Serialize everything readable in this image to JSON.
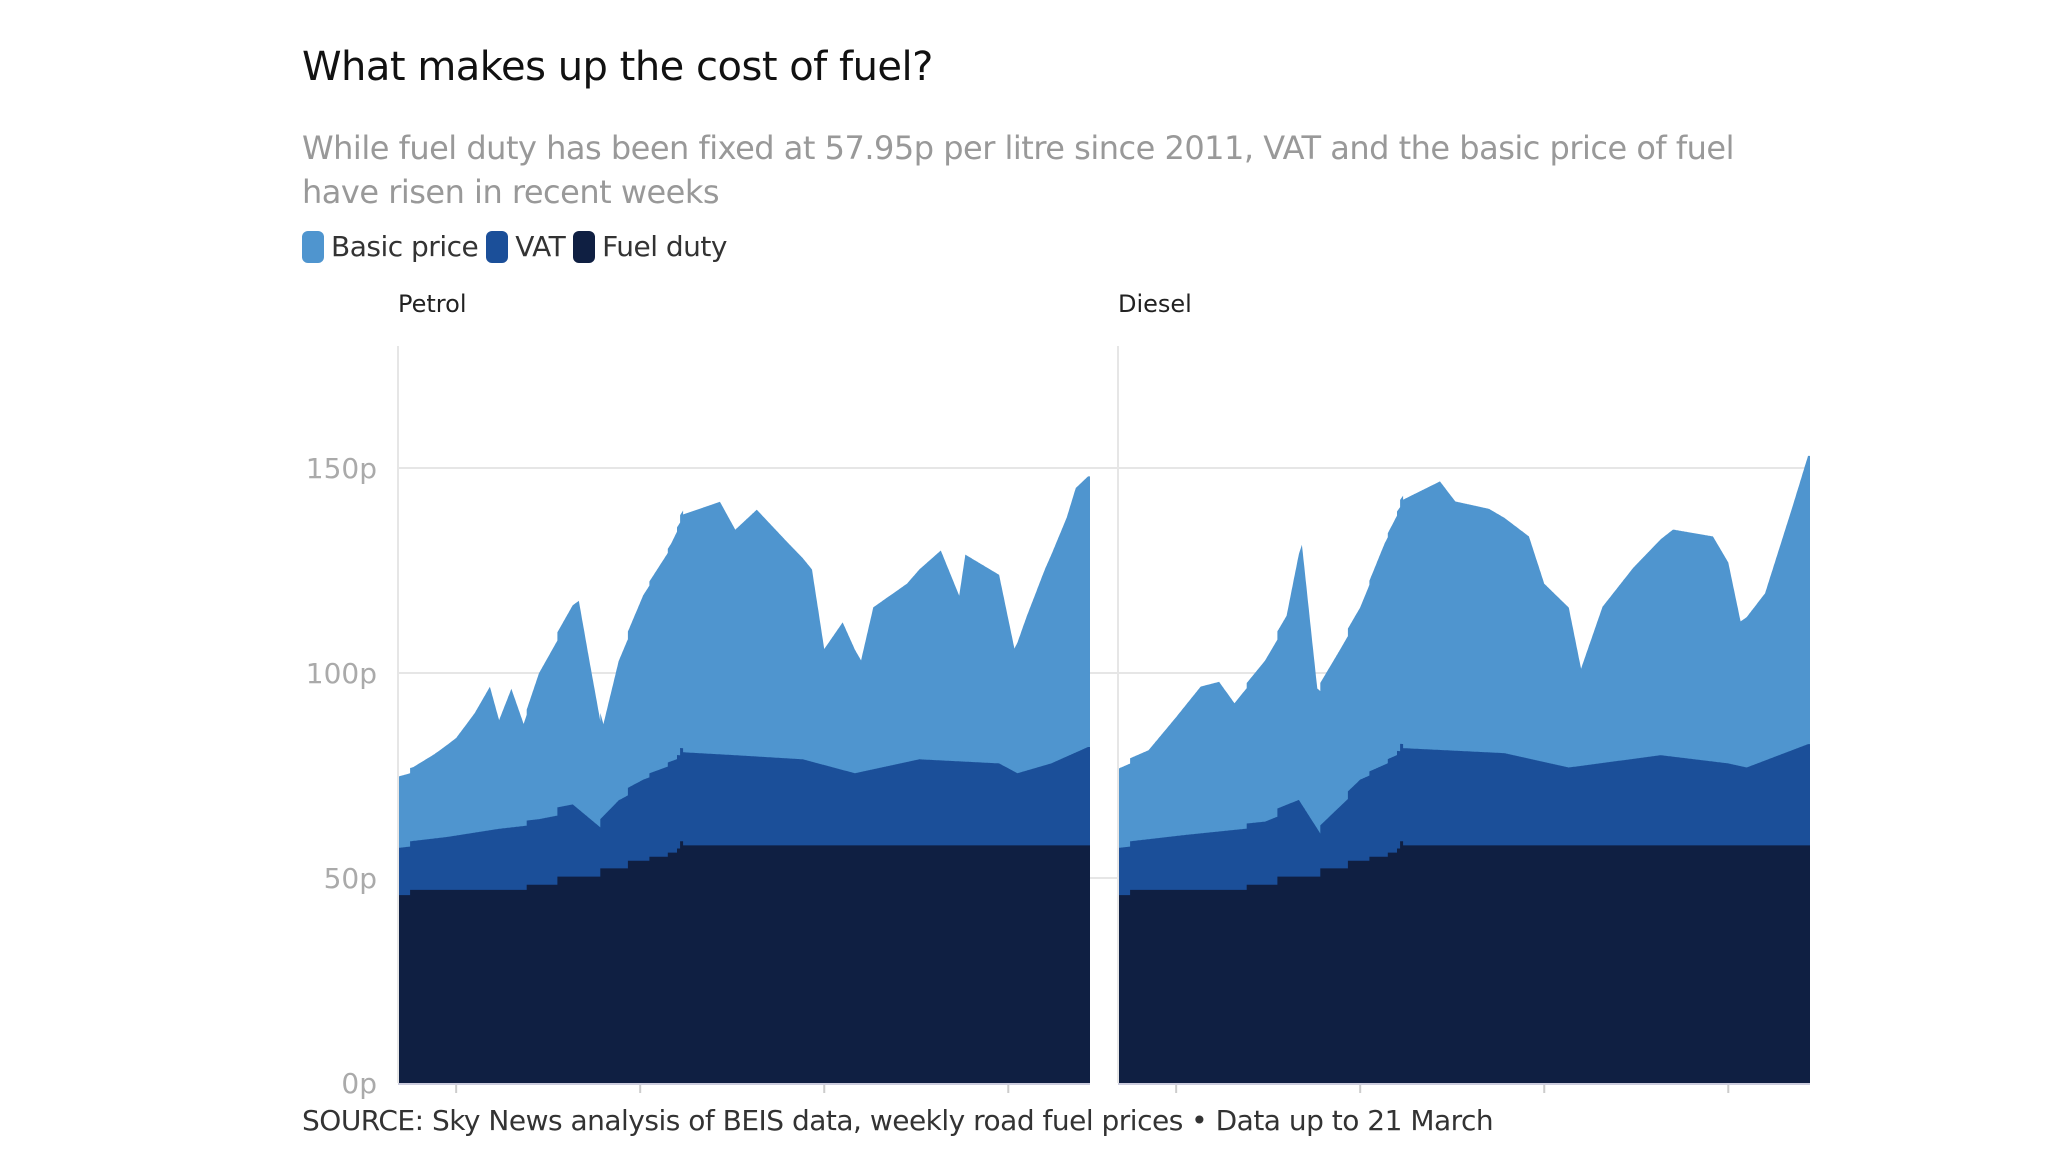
{
  "title": "What makes up the cost of fuel?",
  "subtitle": "While fuel duty has been fixed at 57.95p per litre since 2011, VAT and the basic price of fuel have risen in recent weeks",
  "source": "SOURCE: Sky News analysis of BEIS data, weekly road fuel prices • Data up to 21 March",
  "legend": [
    {
      "label": "Basic price",
      "color": "#4f95cf"
    },
    {
      "label": "VAT",
      "color": "#1b4f99"
    },
    {
      "label": "Fuel duty",
      "color": "#0f1f42"
    }
  ],
  "chart_data": [
    {
      "type": "area",
      "stacked": true,
      "title": "Petrol",
      "x_range": [
        "2003-06",
        "2022-03"
      ],
      "ylim": [
        0,
        165
      ],
      "y_ticks": [
        0,
        50,
        100,
        150
      ],
      "y_tick_labels": [
        "0p",
        "50p",
        "100p",
        "150p"
      ],
      "x_ticks": [
        "2005",
        "2010",
        "2015",
        "2020"
      ],
      "grid": true,
      "series": [
        {
          "name": "Fuel duty",
          "color": "#0f1f42",
          "step": true,
          "points": [
            [
              "2003-06",
              45.82
            ],
            [
              "2003-10",
              47.1
            ],
            [
              "2006-12",
              48.35
            ],
            [
              "2007-10",
              50.35
            ],
            [
              "2008-12",
              52.35
            ],
            [
              "2009-09",
              54.19
            ],
            [
              "2010-04",
              55.19
            ],
            [
              "2010-10",
              56.19
            ],
            [
              "2011-01",
              57.19
            ],
            [
              "2011-02",
              58.95
            ],
            [
              "2011-03",
              57.95
            ],
            [
              "2022-03",
              57.95
            ]
          ]
        },
        {
          "name": "VAT",
          "color": "#1b4f99",
          "points": [
            [
              "2003-06",
              11.5
            ],
            [
              "2004-10",
              12.9
            ],
            [
              "2006-03",
              14.9
            ],
            [
              "2007-04",
              16.0
            ],
            [
              "2008-03",
              17.6
            ],
            [
              "2008-12",
              12.0
            ],
            [
              "2009-06",
              16.6
            ],
            [
              "2010-02",
              19.8
            ],
            [
              "2011-01",
              22.8
            ],
            [
              "2012-08",
              22.0
            ],
            [
              "2014-06",
              21.0
            ],
            [
              "2015-11",
              17.6
            ],
            [
              "2017-08",
              21.0
            ],
            [
              "2019-10",
              20.0
            ],
            [
              "2020-04",
              17.6
            ],
            [
              "2021-03",
              20.0
            ],
            [
              "2022-03",
              24.0
            ]
          ]
        },
        {
          "name": "Basic price",
          "color": "#4f95cf",
          "points": [
            [
              "2003-06",
              17.4
            ],
            [
              "2003-11",
              18.0
            ],
            [
              "2004-06",
              20.6
            ],
            [
              "2005-01",
              23.8
            ],
            [
              "2005-07",
              29.1
            ],
            [
              "2005-12",
              35.0
            ],
            [
              "2006-03",
              26.5
            ],
            [
              "2006-07",
              33.8
            ],
            [
              "2006-11",
              24.9
            ],
            [
              "2007-04",
              35.6
            ],
            [
              "2007-10",
              42.7
            ],
            [
              "2008-05",
              50.9
            ],
            [
              "2008-08",
              40.0
            ],
            [
              "2009-01",
              22.4
            ],
            [
              "2009-06",
              34.0
            ],
            [
              "2010-02",
              45.0
            ],
            [
              "2010-11",
              53.0
            ],
            [
              "2011-03",
              58.0
            ],
            [
              "2012-03",
              61.6
            ],
            [
              "2012-08",
              55.0
            ],
            [
              "2013-03",
              60.2
            ],
            [
              "2014-01",
              52.7
            ],
            [
              "2014-09",
              46.9
            ],
            [
              "2015-01",
              28.3
            ],
            [
              "2015-07",
              36.0
            ],
            [
              "2016-01",
              27.2
            ],
            [
              "2016-05",
              39.5
            ],
            [
              "2017-04",
              43.5
            ],
            [
              "2018-03",
              51.2
            ],
            [
              "2018-09",
              40.4
            ],
            [
              "2018-11",
              50.5
            ],
            [
              "2019-10",
              46.0
            ],
            [
              "2020-03",
              30.0
            ],
            [
              "2020-07",
              37.6
            ],
            [
              "2021-01",
              47.9
            ],
            [
              "2021-08",
              58.2
            ],
            [
              "2021-11",
              64.5
            ],
            [
              "2022-03",
              66.0
            ]
          ]
        }
      ]
    },
    {
      "type": "area",
      "stacked": true,
      "title": "Diesel",
      "x_range": [
        "2003-06",
        "2022-03"
      ],
      "ylim": [
        0,
        165
      ],
      "y_ticks": [
        0,
        50,
        100,
        150
      ],
      "x_ticks": [
        "2005",
        "2010",
        "2015",
        "2020"
      ],
      "grid": true,
      "series": [
        {
          "name": "Fuel duty",
          "color": "#0f1f42",
          "step": true,
          "points": [
            [
              "2003-06",
              45.82
            ],
            [
              "2003-10",
              47.1
            ],
            [
              "2006-12",
              48.35
            ],
            [
              "2007-10",
              50.35
            ],
            [
              "2008-12",
              52.35
            ],
            [
              "2009-09",
              54.19
            ],
            [
              "2010-04",
              55.19
            ],
            [
              "2010-10",
              56.19
            ],
            [
              "2011-01",
              57.19
            ],
            [
              "2011-02",
              58.95
            ],
            [
              "2011-03",
              57.95
            ],
            [
              "2022-03",
              57.95
            ]
          ]
        },
        {
          "name": "VAT",
          "color": "#1b4f99",
          "points": [
            [
              "2003-06",
              11.5
            ],
            [
              "2005-04",
              13.4
            ],
            [
              "2007-06",
              15.4
            ],
            [
              "2008-05",
              18.7
            ],
            [
              "2008-12",
              10.5
            ],
            [
              "2010-01",
              19.8
            ],
            [
              "2011-01",
              23.8
            ],
            [
              "2013-12",
              22.5
            ],
            [
              "2015-09",
              19.0
            ],
            [
              "2018-03",
              22.0
            ],
            [
              "2020-01",
              20.0
            ],
            [
              "2020-07",
              19.0
            ],
            [
              "2022-03",
              24.7
            ]
          ]
        },
        {
          "name": "Basic price",
          "color": "#4f95cf",
          "points": [
            [
              "2003-06",
              19.3
            ],
            [
              "2004-04",
              21.7
            ],
            [
              "2005-01",
              29.0
            ],
            [
              "2005-09",
              35.8
            ],
            [
              "2006-03",
              36.5
            ],
            [
              "2006-08",
              30.9
            ],
            [
              "2007-06",
              39.3
            ],
            [
              "2008-01",
              46.1
            ],
            [
              "2008-06",
              63.4
            ],
            [
              "2008-11",
              34.2
            ],
            [
              "2009-06",
              38.0
            ],
            [
              "2010-01",
              42.0
            ],
            [
              "2010-09",
              54.0
            ],
            [
              "2011-03",
              60.6
            ],
            [
              "2012-03",
              65.5
            ],
            [
              "2012-08",
              60.8
            ],
            [
              "2013-07",
              59.4
            ],
            [
              "2014-08",
              54.2
            ],
            [
              "2015-01",
              43.5
            ],
            [
              "2015-09",
              39.0
            ],
            [
              "2016-01",
              23.7
            ],
            [
              "2016-08",
              38.1
            ],
            [
              "2017-06",
              46.6
            ],
            [
              "2018-07",
              55.4
            ],
            [
              "2019-08",
              54.9
            ],
            [
              "2020-01",
              49.0
            ],
            [
              "2020-05",
              35.3
            ],
            [
              "2021-01",
              40.8
            ],
            [
              "2021-10",
              59.5
            ],
            [
              "2022-03",
              70.3
            ]
          ]
        }
      ]
    }
  ]
}
